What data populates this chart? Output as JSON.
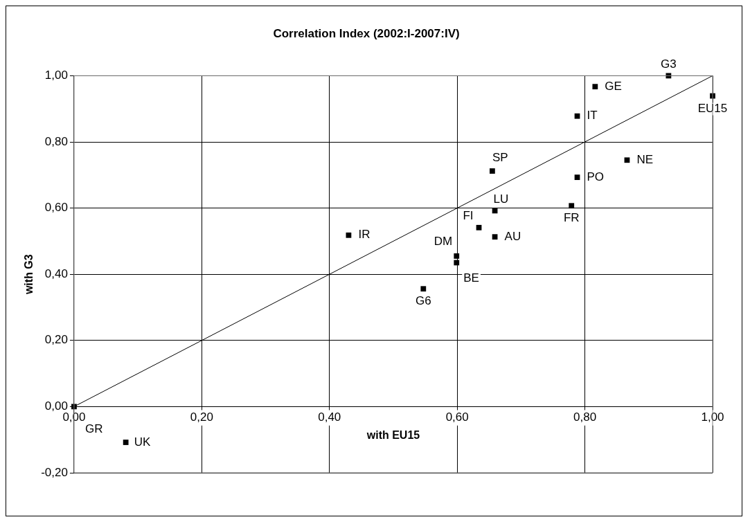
{
  "chart_data": {
    "type": "scatter",
    "title": "Correlation Index (2002:I-2007:IV)",
    "xlabel": "with EU15",
    "ylabel": "with G3",
    "series": [
      {
        "color": "#000000",
        "marker": "square",
        "x": [
          0.931,
          0.816,
          1.0,
          0.788,
          0.866,
          0.788,
          0.655,
          0.659,
          0.779,
          0.634,
          0.659,
          0.599,
          0.599,
          0.547,
          0.43,
          0.0,
          0.081
        ],
        "values": [
          1.0,
          0.967,
          0.939,
          0.878,
          0.745,
          0.693,
          0.712,
          0.592,
          0.607,
          0.541,
          0.513,
          0.455,
          0.435,
          0.356,
          0.518,
          0.0,
          -0.108
        ]
      },
      {
        "type": "line",
        "color": "#000000",
        "marker": "none",
        "x": [
          0,
          1
        ],
        "values": [
          0,
          1
        ]
      }
    ],
    "annotations": [
      {
        "text": "G3",
        "x": 0.931,
        "y": 1.0
      },
      {
        "text": "GE",
        "x": 0.816,
        "y": 0.967
      },
      {
        "text": "EU15",
        "x": 1.0,
        "y": 0.939
      },
      {
        "text": "IT",
        "x": 0.788,
        "y": 0.878
      },
      {
        "text": "NE",
        "x": 0.866,
        "y": 0.745
      },
      {
        "text": "PO",
        "x": 0.788,
        "y": 0.693
      },
      {
        "text": "SP",
        "x": 0.655,
        "y": 0.712
      },
      {
        "text": "LU",
        "x": 0.659,
        "y": 0.592
      },
      {
        "text": "FR",
        "x": 0.779,
        "y": 0.607
      },
      {
        "text": "FI",
        "x": 0.634,
        "y": 0.541
      },
      {
        "text": "AU",
        "x": 0.659,
        "y": 0.513
      },
      {
        "text": "DM",
        "x": 0.599,
        "y": 0.455
      },
      {
        "text": "BE",
        "x": 0.599,
        "y": 0.435
      },
      {
        "text": "G6",
        "x": 0.547,
        "y": 0.356
      },
      {
        "text": "IR",
        "x": 0.43,
        "y": 0.518
      },
      {
        "text": "GR",
        "x": 0.0,
        "y": 0.0
      },
      {
        "text": "UK",
        "x": 0.081,
        "y": -0.108
      }
    ],
    "xlim": [
      0,
      1
    ],
    "ylim": [
      -0.2,
      1
    ],
    "xticks": [
      {
        "value": 0,
        "label": "0,00"
      },
      {
        "value": 0.2,
        "label": "0,20"
      },
      {
        "value": 0.4,
        "label": "0,40"
      },
      {
        "value": 0.6,
        "label": "0,60"
      },
      {
        "value": 0.8,
        "label": "0,80"
      },
      {
        "value": 1,
        "label": "1,00"
      }
    ],
    "yticks": [
      {
        "value": -0.2,
        "label": "-0,20"
      },
      {
        "value": 0,
        "label": "0,00"
      },
      {
        "value": 0.2,
        "label": "0,20"
      },
      {
        "value": 0.4,
        "label": "0,40"
      },
      {
        "value": 0.6,
        "label": "0,60"
      },
      {
        "value": 0.8,
        "label": "0,80"
      },
      {
        "value": 1,
        "label": "1,00"
      }
    ],
    "grid": true,
    "legend": false
  }
}
